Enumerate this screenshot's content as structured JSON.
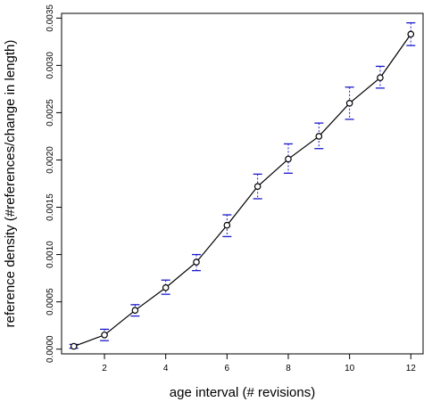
{
  "chart_data": {
    "type": "line",
    "title": "",
    "xlabel": "age interval (# revisions)",
    "ylabel": "reference density (#references/change in length)",
    "xlim": [
      0.6,
      12.4
    ],
    "ylim": [
      -5e-05,
      0.00355
    ],
    "x_ticks": [
      2,
      4,
      6,
      8,
      10,
      12
    ],
    "x_tick_labels": [
      "2",
      "4",
      "6",
      "8",
      "10",
      "12"
    ],
    "y_ticks": [
      0,
      0.0005,
      0.001,
      0.0015,
      0.002,
      0.0025,
      0.003,
      0.0035
    ],
    "y_tick_labels": [
      "0.0000",
      "0.0005",
      "0.0010",
      "0.0015",
      "0.0020",
      "0.0025",
      "0.0030",
      "0.0035"
    ],
    "grid": false,
    "legend": "none",
    "line_color": "#000000",
    "error_bar_color": "#1a1acc",
    "series": [
      {
        "x": [
          1,
          2,
          3,
          4,
          5,
          6,
          7,
          8,
          9,
          10,
          11,
          12
        ],
        "y": [
          3e-05,
          0.00015,
          0.00041,
          0.00065,
          0.00092,
          0.00131,
          0.00172,
          0.00201,
          0.00225,
          0.0026,
          0.00287,
          0.00333
        ],
        "err_low": [
          1e-05,
          9e-05,
          0.00035,
          0.00058,
          0.00083,
          0.00119,
          0.00159,
          0.00186,
          0.00212,
          0.00243,
          0.00276,
          0.00321
        ],
        "err_high": [
          5e-05,
          0.00021,
          0.00047,
          0.00073,
          0.001,
          0.00142,
          0.00185,
          0.00217,
          0.00239,
          0.00277,
          0.00299,
          0.00345
        ]
      }
    ]
  }
}
